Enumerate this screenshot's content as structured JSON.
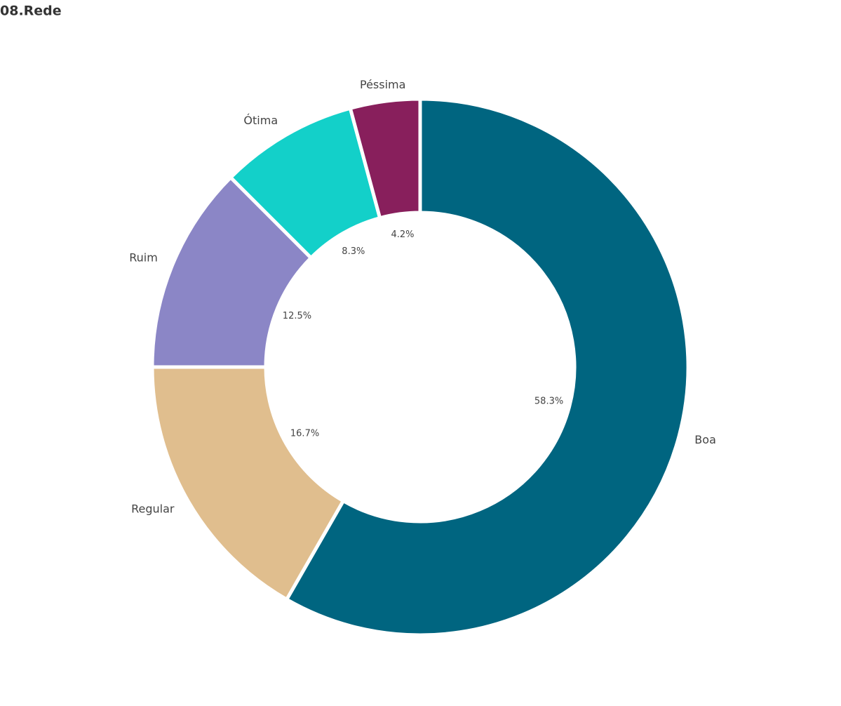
{
  "chart_data": {
    "type": "donut",
    "title": "08.Rede",
    "categories": [
      "Boa",
      "Regular",
      "Ruim",
      "Ótima",
      "Péssima"
    ],
    "values": [
      58.3,
      16.7,
      12.5,
      8.3,
      4.2
    ],
    "value_labels": [
      "58.3%",
      "16.7%",
      "12.5%",
      "8.3%",
      "4.2%"
    ],
    "colors": [
      "#006580",
      "#e0be8e",
      "#8b86c6",
      "#13d0c9",
      "#881f5c"
    ]
  }
}
